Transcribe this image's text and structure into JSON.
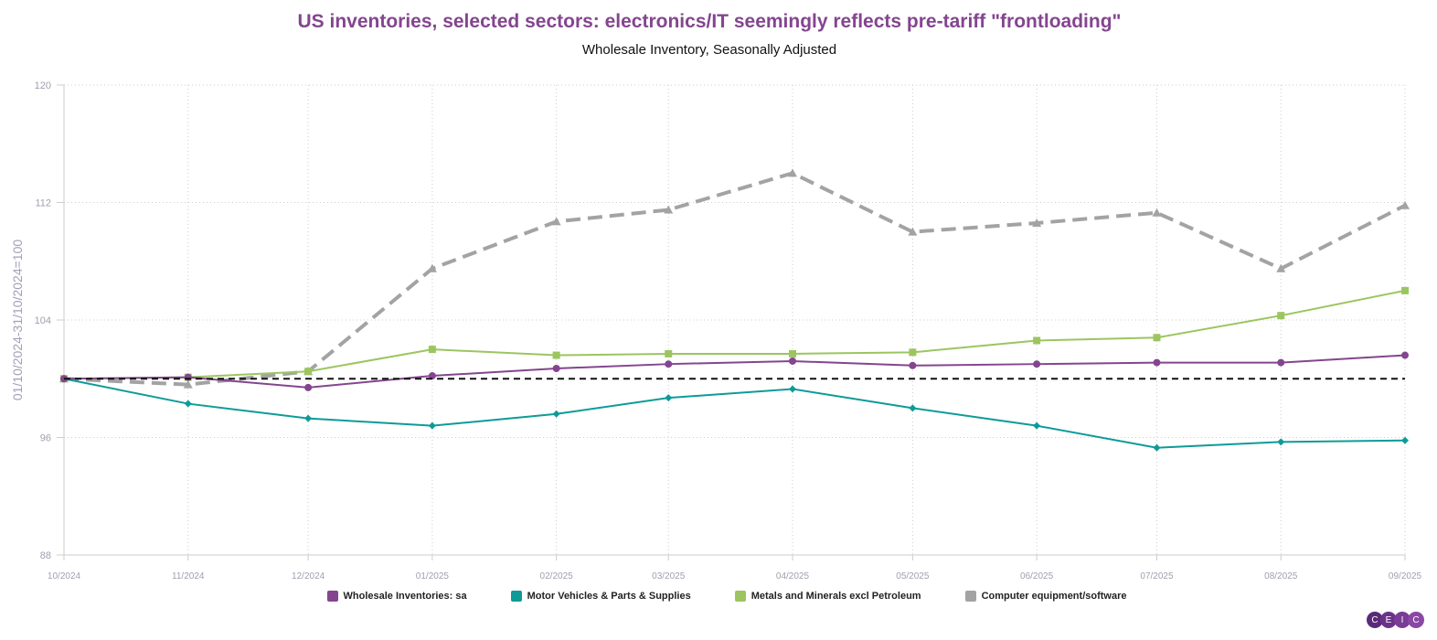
{
  "chart_data": {
    "type": "line",
    "title": "US inventories, selected sectors: electronics/IT seemingly reflects pre-tariff \"frontloading\"",
    "subtitle": "Wholesale Inventory, Seasonally Adjusted",
    "ylabel": "01/10/2024-31/10/2024=100",
    "xlabel": "",
    "ylim": [
      88,
      120
    ],
    "yticks": [
      "88",
      "96",
      "104",
      "112",
      "120"
    ],
    "categories": [
      "10/2024",
      "11/2024",
      "12/2024",
      "01/2025",
      "02/2025",
      "03/2025",
      "04/2025",
      "05/2025",
      "06/2025",
      "07/2025",
      "08/2025",
      "09/2025"
    ],
    "reference_line": 100,
    "grid": true,
    "legend_position": "bottom",
    "series": [
      {
        "name": "Wholesale Inventories: sa",
        "color": "#84458f",
        "marker": "circle",
        "dashed": false,
        "values": [
          100,
          100.1,
          99.4,
          100.2,
          100.7,
          101.0,
          101.2,
          100.9,
          101.0,
          101.1,
          101.1,
          101.6
        ]
      },
      {
        "name": "Motor Vehicles & Parts & Supplies",
        "color": "#0e9b98",
        "marker": "diamond",
        "dashed": false,
        "values": [
          100,
          98.3,
          97.3,
          96.8,
          97.6,
          98.7,
          99.3,
          98.0,
          96.8,
          95.3,
          95.7,
          95.8
        ]
      },
      {
        "name": "Metals and Minerals excl Petroleum",
        "color": "#9cc55f",
        "marker": "square",
        "dashed": false,
        "values": [
          100,
          100.1,
          100.5,
          102.0,
          101.6,
          101.7,
          101.7,
          101.8,
          102.6,
          102.8,
          104.3,
          106.0
        ]
      },
      {
        "name": "Computer equipment/software",
        "color": "#a3a3a3",
        "marker": "triangle",
        "dashed": true,
        "values": [
          100,
          99.6,
          100.5,
          107.5,
          110.7,
          111.5,
          114.0,
          110.0,
          110.6,
          111.3,
          107.5,
          111.8
        ]
      }
    ]
  },
  "logo": {
    "letters": [
      "C",
      "E",
      "I",
      "C"
    ],
    "colors": [
      "#5a2a7a",
      "#6a3389",
      "#7a3c96",
      "#8a47a3"
    ]
  }
}
